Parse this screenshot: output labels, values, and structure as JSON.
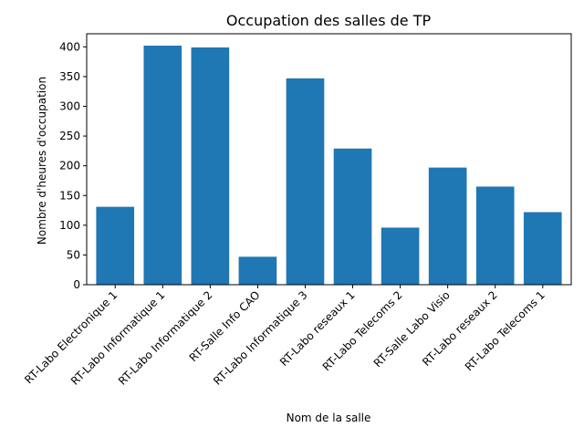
{
  "chart_data": {
    "type": "bar",
    "title": "Occupation des salles de TP",
    "xlabel": "Nom de la salle",
    "ylabel": "Nombre d'heures d'occupation",
    "categories": [
      "RT-Labo Electronique 1",
      "RT-Labo Informatique 1",
      "RT-Labo Informatique 2",
      "RT-Salle Info CAO",
      "RT-Labo Informatique 3",
      "RT-Labo reseaux 1",
      "RT-Labo Telecoms 2",
      "RT-Salle Labo Visio",
      "RT-Labo reseaux 2",
      "RT-Labo Telecoms 1"
    ],
    "values": [
      131,
      402,
      399,
      47,
      347,
      229,
      96,
      197,
      165,
      122
    ],
    "ylim": [
      0,
      422
    ],
    "yticks": [
      0,
      50,
      100,
      150,
      200,
      250,
      300,
      350,
      400
    ],
    "bar_color": "#1f77b4",
    "grid": false,
    "legend": "none"
  }
}
